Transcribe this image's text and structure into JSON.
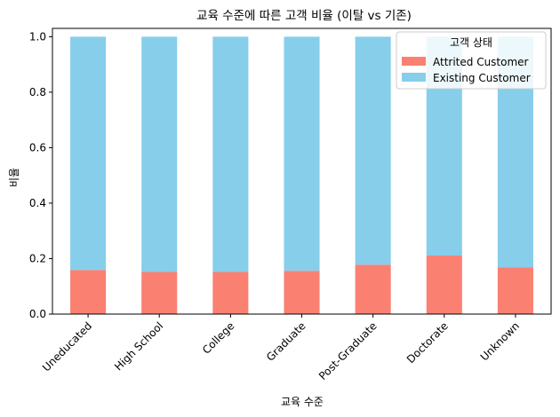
{
  "chart_data": {
    "type": "bar",
    "stacked": true,
    "title": "교육 수준에 따른 고객 비율 (이탈 vs 기존)",
    "xlabel": "교육 수준",
    "ylabel": "비율",
    "categories": [
      "Uneducated",
      "High School",
      "College",
      "Graduate",
      "Post-Graduate",
      "Doctorate",
      "Unknown"
    ],
    "series": [
      {
        "name": "Attrited Customer",
        "color": "#fa8072",
        "values": [
          0.159,
          0.152,
          0.152,
          0.156,
          0.178,
          0.211,
          0.169
        ]
      },
      {
        "name": "Existing Customer",
        "color": "#87ceeb",
        "values": [
          0.841,
          0.848,
          0.848,
          0.844,
          0.822,
          0.789,
          0.831
        ]
      }
    ],
    "ylim": [
      0,
      1.03
    ],
    "yticks": [
      "0.0",
      "0.2",
      "0.4",
      "0.6",
      "0.8",
      "1.0"
    ],
    "legend": {
      "title": "고객 상태",
      "placement": "top-right"
    },
    "grid": false
  }
}
